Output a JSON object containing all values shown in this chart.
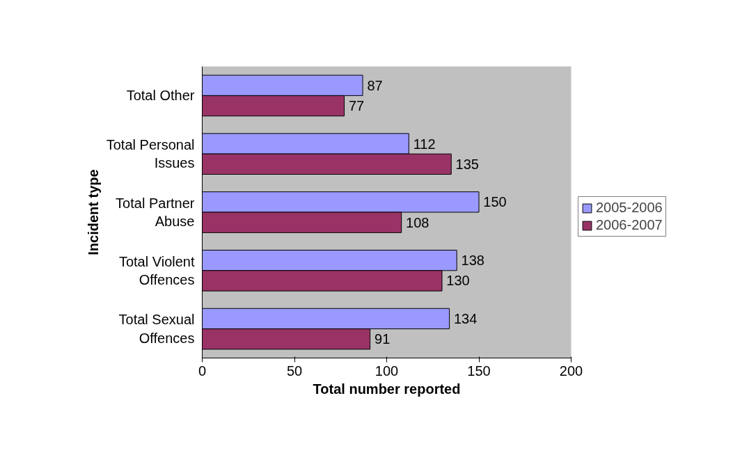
{
  "chart_data": {
    "type": "bar",
    "orientation": "horizontal",
    "xlabel": "Total number reported",
    "ylabel": "Incident type",
    "categories": [
      "Total Other",
      "Total Personal\nIssues",
      "Total Partner\nAbuse",
      "Total Violent\nOffences",
      "Total Sexual\nOffences"
    ],
    "series": [
      {
        "name": "2005-2006",
        "color": "#9999ff",
        "values": [
          87,
          112,
          150,
          138,
          134
        ]
      },
      {
        "name": "2006-2007",
        "color": "#993366",
        "values": [
          77,
          135,
          108,
          130,
          91
        ]
      }
    ],
    "xlim": [
      0,
      200
    ],
    "xticks": [
      0,
      50,
      100,
      150,
      200
    ],
    "grid": false,
    "legend": "right",
    "data_labels": true
  }
}
